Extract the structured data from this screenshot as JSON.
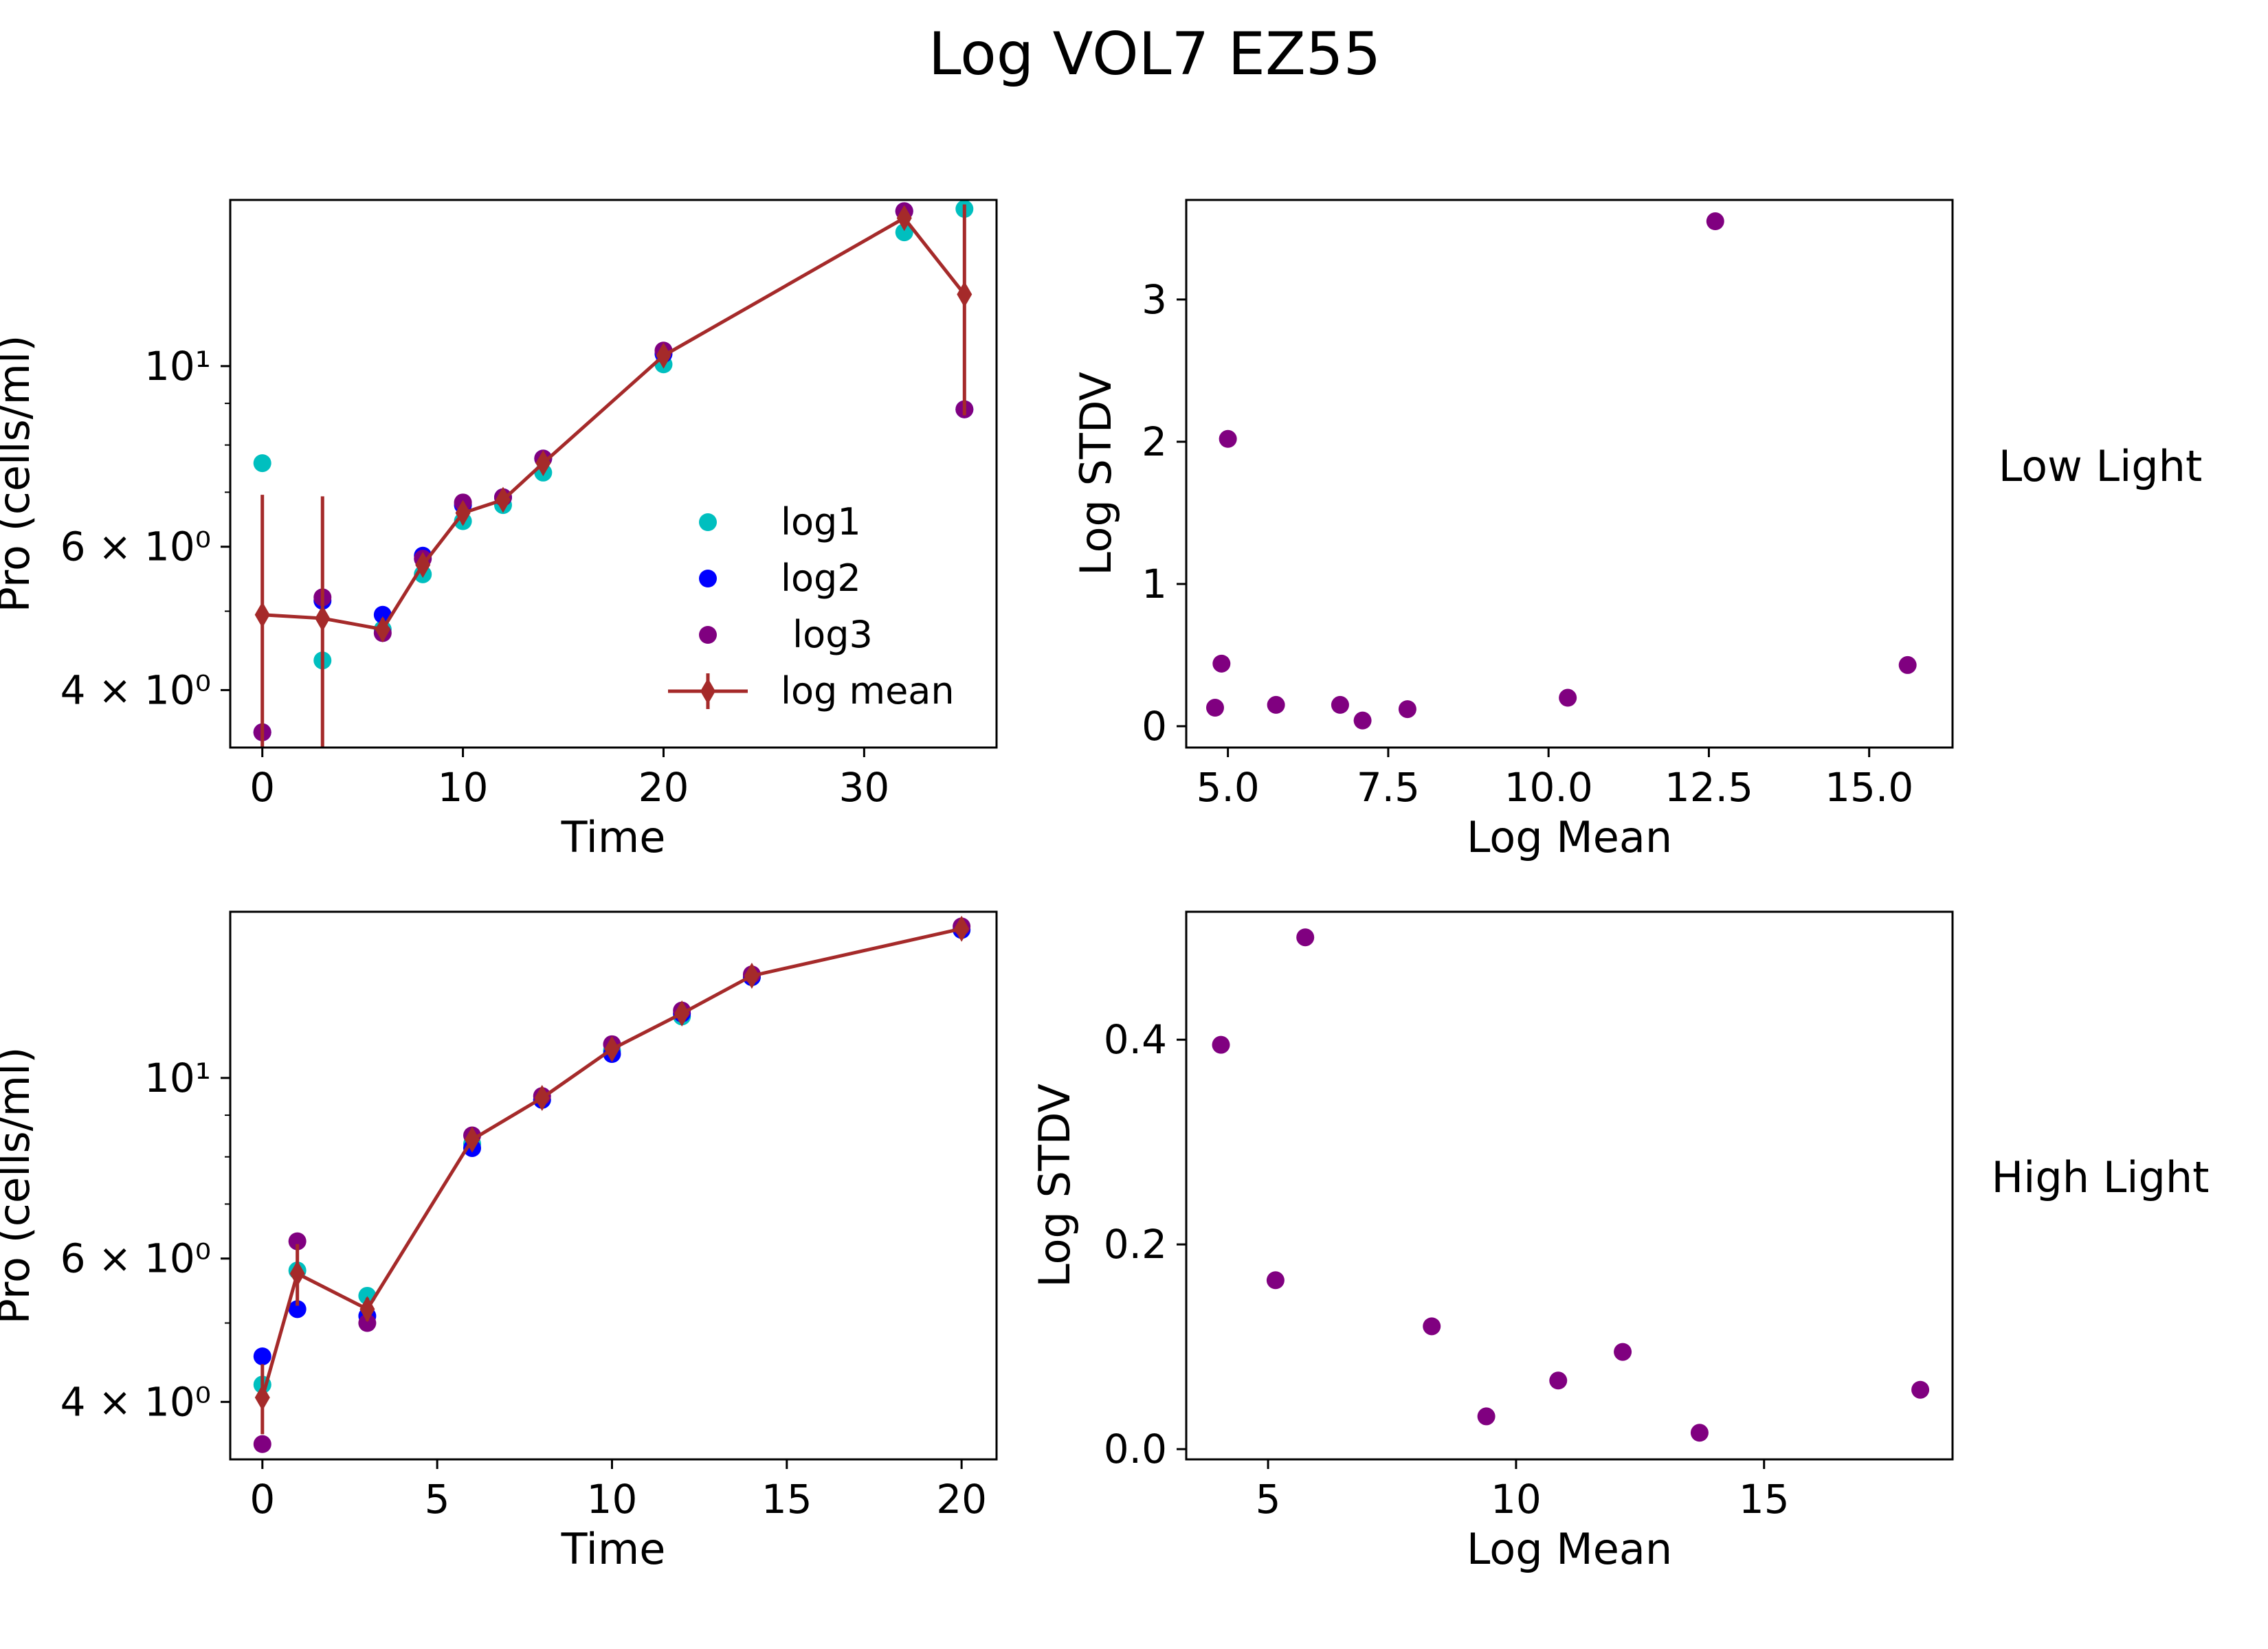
{
  "figure": {
    "title": "Log VOL7 EZ55",
    "row_labels": [
      "Low Light",
      "High Light"
    ]
  },
  "colors": {
    "log1": "#00bfbf",
    "log2": "#0000ff",
    "log3": "#800080",
    "log_mean": "#a52a2a",
    "stdv_points": "#800080"
  },
  "chart_data": [
    {
      "id": "low-light-timeseries",
      "type": "scatter",
      "xlabel": "Time",
      "ylabel": "Pro (cells/ml)",
      "yscale": "log",
      "xlim": [
        -1.6,
        36.6
      ],
      "ylim": [
        3.4,
        16.0
      ],
      "xticks": [
        0,
        10,
        20,
        30
      ],
      "yticks": [
        {
          "value": 4,
          "label": "4 × 10⁰"
        },
        {
          "value": 6,
          "label": "6 × 10⁰"
        },
        {
          "value": 10,
          "label": "10¹"
        }
      ],
      "y_minor_ticks": [
        3,
        5,
        7,
        8,
        9
      ],
      "legend": {
        "position": "lower-right",
        "entries": [
          "log1",
          "log2",
          " log3",
          "log mean"
        ]
      },
      "series": [
        {
          "name": "log1",
          "x": [
            0,
            3,
            6,
            8,
            10,
            12,
            14,
            20,
            32,
            35
          ],
          "y": [
            7.6,
            4.35,
            4.75,
            5.55,
            6.45,
            6.75,
            7.4,
            10.05,
            14.6,
            15.6
          ]
        },
        {
          "name": "log2",
          "x": [
            0,
            3,
            6,
            8,
            10,
            12,
            14,
            20,
            32,
            35
          ],
          "y": [
            3.55,
            5.15,
            4.95,
            5.85,
            6.75,
            6.9,
            7.7,
            10.35,
            15.5,
            8.85
          ]
        },
        {
          "name": "log3",
          "x": [
            0,
            3,
            6,
            8,
            10,
            12,
            14,
            20,
            32,
            35
          ],
          "y": [
            3.55,
            5.2,
            4.7,
            5.8,
            6.8,
            6.9,
            7.7,
            10.45,
            15.5,
            8.85
          ]
        },
        {
          "name": "log mean",
          "x": [
            0,
            3,
            6,
            8,
            10,
            12,
            14,
            20,
            32,
            35
          ],
          "y": [
            4.95,
            4.9,
            4.75,
            5.7,
            6.6,
            6.85,
            7.6,
            10.3,
            15.2,
            12.25
          ],
          "err": [
            2.0,
            2.02,
            0.15,
            0.15,
            0.2,
            0.12,
            0.12,
            0.2,
            0.43,
            3.55
          ]
        }
      ]
    },
    {
      "id": "low-light-stdv",
      "type": "scatter",
      "xlabel": "Log Mean",
      "ylabel": "Log STDV",
      "xlim": [
        4.35,
        16.3
      ],
      "ylim": [
        -0.15,
        3.7
      ],
      "xticks": [
        5.0,
        7.5,
        10.0,
        12.5,
        15.0
      ],
      "xtick_labels": [
        "5.0",
        "7.5",
        "10.0",
        "12.5",
        "15.0"
      ],
      "yticks": [
        0,
        1,
        2,
        3
      ],
      "x": [
        4.8,
        4.9,
        5.0,
        5.75,
        6.75,
        7.1,
        7.8,
        10.3,
        12.6,
        15.6
      ],
      "y": [
        0.13,
        0.44,
        2.02,
        0.15,
        0.15,
        0.04,
        0.12,
        0.2,
        3.55,
        0.43
      ]
    },
    {
      "id": "high-light-timeseries",
      "type": "scatter",
      "xlabel": "Time",
      "ylabel": "Pro (cells/ml)",
      "yscale": "log",
      "xlim": [
        -0.92,
        21.0
      ],
      "ylim": [
        3.4,
        16.0
      ],
      "xticks": [
        0,
        5,
        10,
        15,
        20
      ],
      "yticks": [
        {
          "value": 4,
          "label": "4 × 10⁰"
        },
        {
          "value": 6,
          "label": "6 × 10⁰"
        },
        {
          "value": 10,
          "label": "10¹"
        }
      ],
      "y_minor_ticks": [
        3,
        5,
        7,
        8,
        9
      ],
      "series": [
        {
          "name": "log1",
          "x": [
            0,
            1,
            3,
            6,
            8,
            10,
            12,
            14,
            20
          ],
          "y": [
            4.2,
            5.8,
            5.4,
            8.3,
            9.4,
            10.8,
            11.9,
            13.3,
            15.2
          ]
        },
        {
          "name": "log2",
          "x": [
            0,
            1,
            3,
            6,
            8,
            10,
            12,
            14,
            20
          ],
          "y": [
            4.55,
            5.2,
            5.1,
            8.2,
            9.4,
            10.7,
            12.0,
            13.3,
            15.2
          ]
        },
        {
          "name": "log3",
          "x": [
            0,
            1,
            3,
            6,
            8,
            10,
            12,
            14,
            20
          ],
          "y": [
            3.55,
            6.3,
            5.0,
            8.5,
            9.5,
            11.0,
            12.1,
            13.4,
            15.35
          ]
        },
        {
          "name": "log mean",
          "x": [
            0,
            1,
            3,
            6,
            8,
            10,
            12,
            14,
            20
          ],
          "y": [
            4.05,
            5.75,
            5.2,
            8.4,
            9.45,
            10.85,
            12.0,
            13.35,
            15.25
          ],
          "err": [
            0.4,
            0.5,
            0.17,
            0.12,
            0.07,
            0.1,
            0.1,
            0.12,
            0.3
          ]
        }
      ]
    },
    {
      "id": "high-light-stdv",
      "type": "scatter",
      "xlabel": "Log Mean",
      "ylabel": "Log STDV",
      "xlim": [
        3.35,
        18.8
      ],
      "ylim": [
        -0.01,
        0.525
      ],
      "xticks": [
        5,
        10,
        15
      ],
      "xtick_labels": [
        "5",
        "10",
        "15"
      ],
      "yticks": [
        0.0,
        0.2,
        0.4
      ],
      "ytick_labels": [
        "0.0",
        "0.2",
        "0.4"
      ],
      "x": [
        4.05,
        5.15,
        5.75,
        8.3,
        9.4,
        10.85,
        12.15,
        13.7,
        18.15
      ],
      "y": [
        0.395,
        0.165,
        0.5,
        0.12,
        0.032,
        0.067,
        0.095,
        0.016,
        0.058
      ]
    }
  ]
}
